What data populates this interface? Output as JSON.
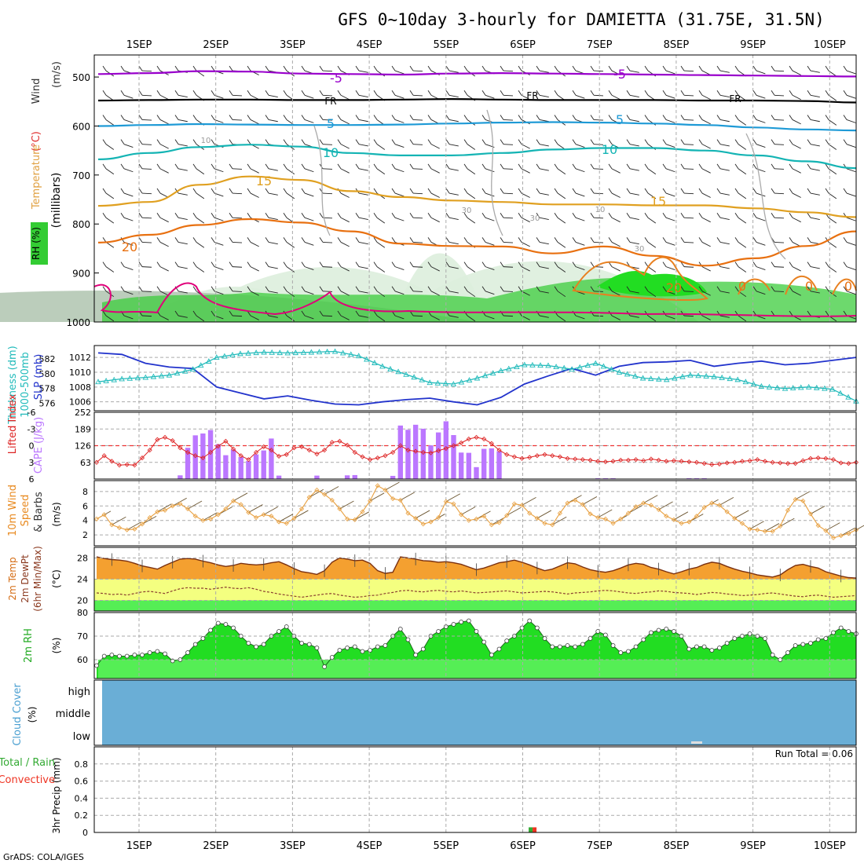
{
  "title": "GFS 0~10day 3-hourly for DAMIETTA (31.75E, 31.5N)",
  "footer": "GrADS: COLA/IGES",
  "dates": [
    "1SEP",
    "2SEP",
    "3SEP",
    "4SEP",
    "5SEP",
    "6SEP",
    "7SEP",
    "8SEP",
    "9SEP",
    "10SEP"
  ],
  "colors": {
    "purple": "#9900cc",
    "black": "#000000",
    "sky": "#1e9ad6",
    "teal": "#14b4b4",
    "gold": "#e0a020",
    "orange": "#e87010",
    "magenta": "#e0007a",
    "rh_light": "#ddeedd",
    "rh_mid": "#b4c8b4",
    "rh_green": "#3ccc3c",
    "slp": "#2233cc",
    "thick": "#22bbbb",
    "li": "#dd2222",
    "cape": "#bb77ff",
    "wind": "#e8a040",
    "temp_fill": "#f4a030",
    "dew_band": "#f4ff80",
    "rh2m": "#22dd22",
    "cloud": "#6aaed6"
  },
  "chart_data": [
    {
      "type": "area",
      "panel": "upper-air",
      "ylabel_lines": [
        {
          "text": "Wind",
          "unit": "(m/s)"
        },
        {
          "text": "Temperature",
          "unit": "(°C)"
        },
        {
          "text": "RH (%)"
        }
      ],
      "ylabel_levels": "(millibars)",
      "yticks": [
        500,
        600,
        700,
        800,
        900,
        1000
      ],
      "ylim": [
        455,
        1000
      ],
      "contour_labels": [
        "-5",
        "-5",
        "FR",
        "FR",
        "FR",
        "5",
        "5",
        "10",
        "10",
        "15",
        "15",
        "20",
        "20",
        "0",
        "0",
        "0",
        "10",
        "10",
        "30",
        "30",
        "30"
      ],
      "isotherms": [
        {
          "name": "-5",
          "color": "purple",
          "p": [
            494,
            492,
            488,
            489,
            493,
            494,
            495,
            493,
            492,
            493,
            494,
            495,
            496,
            497,
            498,
            499
          ]
        },
        {
          "name": "FR",
          "color": "black",
          "p": [
            548,
            547,
            546,
            546,
            547,
            547,
            546,
            545,
            546,
            547,
            547,
            547,
            548,
            548,
            549,
            552
          ]
        },
        {
          "name": "5",
          "color": "sky",
          "p": [
            600,
            598,
            596,
            597,
            598,
            598,
            597,
            595,
            593,
            592,
            593,
            595,
            598,
            603,
            607,
            609
          ]
        },
        {
          "name": "10",
          "color": "teal",
          "p": [
            668,
            655,
            643,
            638,
            642,
            655,
            660,
            660,
            655,
            648,
            645,
            645,
            650,
            660,
            672,
            686
          ]
        },
        {
          "name": "15",
          "color": "gold",
          "p": [
            763,
            755,
            720,
            703,
            710,
            733,
            745,
            752,
            755,
            760,
            760,
            762,
            762,
            768,
            776,
            786
          ]
        },
        {
          "name": "20",
          "color": "orange",
          "p": [
            838,
            822,
            802,
            790,
            797,
            815,
            840,
            845,
            846,
            860,
            846,
            865,
            885,
            870,
            845,
            815
          ]
        }
      ]
    },
    {
      "type": "line",
      "panel": "slp-thickness",
      "ylabel": "SLP (mb)",
      "ylabel2": [
        "1000-500mb",
        "Thickness (dm)"
      ],
      "yticks_right": [
        1006,
        1008,
        1010,
        1012
      ],
      "yticks_left": [
        576,
        578,
        580,
        582
      ],
      "series": [
        {
          "name": "SLP (mb)",
          "values": [
            1012.6,
            1012.4,
            1011.2,
            1010.7,
            1010.5,
            1008.0,
            1007.2,
            1006.4,
            1006.8,
            1006.2,
            1005.7,
            1005.6,
            1006.0,
            1006.3,
            1006.5,
            1006.0,
            1005.6,
            1006.6,
            1008.4,
            1009.5,
            1010.5,
            1009.6,
            1010.8,
            1011.3,
            1011.4,
            1011.6,
            1010.8,
            1011.2,
            1011.5,
            1011.0,
            1011.2,
            1011.6,
            1012.0
          ]
        },
        {
          "name": "1000-500mb Thickness (dm)",
          "values": [
            578.9,
            579.3,
            579.5,
            579.8,
            580.6,
            582.2,
            582.7,
            582.9,
            582.8,
            582.9,
            583.0,
            582.4,
            581.0,
            579.9,
            578.8,
            578.6,
            579.4,
            580.4,
            581.2,
            581.1,
            580.6,
            581.4,
            580.2,
            579.4,
            579.2,
            579.8,
            579.6,
            579.2,
            578.3,
            578.0,
            578.2,
            577.9,
            576.3
          ]
        }
      ]
    },
    {
      "type": "bar",
      "panel": "cape-li",
      "ylabel": "CAPE (J/kg)",
      "ylabel2": "Lifted Index",
      "yticks_cape": [
        63,
        126,
        189,
        252
      ],
      "yticks_li": [
        -6,
        -3,
        0,
        3,
        6
      ],
      "cape_values": [
        0,
        0,
        0,
        0,
        0,
        0,
        0,
        0,
        0,
        0,
        0,
        14,
        118,
        165,
        172,
        185,
        132,
        90,
        111,
        83,
        68,
        93,
        108,
        153,
        13,
        0,
        0,
        0,
        0,
        13,
        0,
        0,
        0,
        14,
        15,
        0,
        0,
        0,
        0,
        12,
        202,
        186,
        205,
        190,
        127,
        176,
        218,
        166,
        100,
        99,
        45,
        114,
        116,
        105,
        0,
        0,
        0,
        0,
        0,
        0,
        0,
        0,
        0,
        0,
        0,
        0,
        3,
        3,
        3,
        0,
        0,
        0,
        0,
        0,
        0,
        0,
        0,
        0,
        3,
        3,
        3,
        0,
        0,
        0,
        0,
        0,
        0,
        0,
        0,
        0,
        0,
        0,
        0,
        0,
        0,
        0,
        0,
        0,
        0,
        0,
        0
      ],
      "li_values": [
        3.0,
        1.8,
        2.8,
        3.5,
        3.4,
        3.5,
        2.2,
        0.8,
        -1.1,
        -1.5,
        -0.9,
        0.4,
        1.2,
        1.8,
        2.2,
        1.2,
        0.1,
        -0.8,
        0.6,
        1.8,
        2.5,
        1.2,
        0.2,
        0.8,
        1.9,
        1.6,
        0.4,
        0.2,
        0.8,
        1.5,
        0.8,
        -0.6,
        -0.8,
        -0.1,
        1.2,
        2.0,
        2.5,
        2.2,
        1.8,
        1.2,
        0.0,
        0.8,
        1.0,
        1.2,
        1.3,
        0.9,
        0.5,
        0.0,
        -0.5,
        -1.2,
        -1.5,
        -1.2,
        -0.4,
        0.8,
        1.6,
        2.0,
        2.3,
        2.1,
        1.8,
        1.6,
        1.8,
        2.0,
        2.3,
        2.4,
        2.5,
        2.6,
        2.8,
        2.9,
        2.8,
        2.6,
        2.6,
        2.5,
        2.7,
        2.4,
        2.6,
        2.8,
        2.7,
        2.8,
        2.9,
        3.0,
        3.2,
        3.4,
        3.3,
        3.1,
        3.0,
        2.8,
        2.7,
        2.5,
        2.8,
        3.0,
        3.1,
        3.2,
        3.2,
        2.7,
        2.3,
        2.2,
        2.3,
        2.5,
        3.1,
        3.2,
        3.0
      ]
    },
    {
      "type": "line",
      "panel": "10m-wind",
      "ylabel": [
        "10m Wind",
        "Speed",
        "& Barbs"
      ],
      "unit": "(m/s)",
      "yticks": [
        2,
        4,
        6,
        8
      ],
      "ylim": [
        0.5,
        9.5
      ],
      "series": [
        {
          "name": "10m Wind Speed",
          "values": [
            4.2,
            4.8,
            3.4,
            3.0,
            2.7,
            2.8,
            3.5,
            4.4,
            5.2,
            5.4,
            6.0,
            6.3,
            5.6,
            4.6,
            4.0,
            4.2,
            4.8,
            5.6,
            6.7,
            6.2,
            5.1,
            4.4,
            4.8,
            4.6,
            3.8,
            3.6,
            4.3,
            5.6,
            7.2,
            8.2,
            7.6,
            6.8,
            5.6,
            4.2,
            4.1,
            5.2,
            6.7,
            8.8,
            8.2,
            7.0,
            6.8,
            5.0,
            4.3,
            3.5,
            3.8,
            4.4,
            6.6,
            6.3,
            4.8,
            4.0,
            4.2,
            4.6,
            3.4,
            3.7,
            4.7,
            6.3,
            6.1,
            5.0,
            4.3,
            3.6,
            3.4,
            5.0,
            6.4,
            6.8,
            6.2,
            4.9,
            4.4,
            4.2,
            3.6,
            4.2,
            5.0,
            5.9,
            6.4,
            6.1,
            5.5,
            4.6,
            4.1,
            3.6,
            3.8,
            4.6,
            5.8,
            6.4,
            6.1,
            5.2,
            4.3,
            3.6,
            2.8,
            2.7,
            2.5,
            2.5,
            3.2,
            5.4,
            6.9,
            6.7,
            4.9,
            3.3,
            2.6,
            1.6,
            1.9,
            2.2,
            2.7
          ]
        }
      ]
    },
    {
      "type": "area",
      "panel": "2m-temp",
      "ylabel": [
        "2m Temp",
        "2m DewPt",
        "(6hr Min/Max)"
      ],
      "unit": "(°C)",
      "yticks": [
        20,
        24,
        28
      ],
      "ylim": [
        18,
        30
      ],
      "series": [
        {
          "name": "2m Temp",
          "values": [
            28.2,
            27.9,
            27.7,
            27.6,
            27.4,
            27.0,
            26.5,
            26.2,
            25.9,
            26.6,
            27.2,
            27.8,
            27.9,
            27.8,
            27.4,
            27.1,
            26.7,
            26.4,
            26.6,
            27.0,
            26.8,
            26.7,
            26.8,
            27.1,
            27.3,
            26.7,
            26.0,
            25.4,
            25.2,
            24.9,
            25.6,
            27.2,
            28.0,
            27.8,
            27.5,
            27.6,
            27.0,
            25.6,
            25.1,
            25.3,
            28.2,
            28.0,
            27.8,
            27.5,
            27.4,
            27.2,
            27.3,
            27.1,
            26.8,
            26.3,
            25.8,
            26.1,
            26.6,
            27.1,
            27.3,
            27.6,
            27.2,
            26.7,
            26.1,
            25.6,
            25.9,
            26.5,
            27.1,
            26.9,
            26.3,
            25.8,
            25.5,
            25.3,
            25.6,
            26.1,
            26.7,
            27.0,
            26.8,
            26.2,
            25.9,
            25.4,
            25.0,
            25.4,
            25.9,
            26.2,
            26.8,
            27.2,
            27.0,
            26.4,
            25.9,
            25.5,
            25.2,
            24.8,
            24.6,
            24.4,
            24.8,
            25.8,
            26.6,
            26.8,
            26.4,
            26.1,
            25.4,
            25.0,
            24.6,
            24.3,
            24.2
          ]
        },
        {
          "name": "2m DewPt",
          "values": [
            21.4,
            21.3,
            21.1,
            21.2,
            21.0,
            21.3,
            21.6,
            21.7,
            21.5,
            21.3,
            21.8,
            22.2,
            22.4,
            22.3,
            22.3,
            22.1,
            22.3,
            22.5,
            22.3,
            22.2,
            22.4,
            22.1,
            21.7,
            21.5,
            21.2,
            21.0,
            20.8,
            20.6,
            20.8,
            21.0,
            21.2,
            21.3,
            21.0,
            20.8,
            20.6,
            20.7,
            20.9,
            21.0,
            21.3,
            21.5,
            21.8,
            21.9,
            21.7,
            21.6,
            21.8,
            21.9,
            21.7,
            21.6,
            21.8,
            21.6,
            21.4,
            21.5,
            21.6,
            21.7,
            21.8,
            21.6,
            21.4,
            21.5,
            21.6,
            21.7,
            21.6,
            21.4,
            21.2,
            21.4,
            21.5,
            21.6,
            21.8,
            21.9,
            21.8,
            21.6,
            21.4,
            21.3,
            21.5,
            21.6,
            21.8,
            21.7,
            21.5,
            21.4,
            21.3,
            21.1,
            21.3,
            21.5,
            21.4,
            21.2,
            21.1,
            20.9,
            21.0,
            21.1,
            21.3,
            21.4,
            21.2,
            21.0,
            20.8,
            20.7,
            20.9,
            21.0,
            20.8,
            20.6,
            20.7,
            20.8,
            20.9
          ]
        }
      ]
    },
    {
      "type": "area",
      "panel": "2m-rh",
      "ylabel": "2m RH",
      "unit": "(%)",
      "yticks": [
        60,
        70,
        80
      ],
      "ylim": [
        52,
        80
      ],
      "series": [
        {
          "name": "2m RH",
          "values": [
            57.5,
            61.5,
            62.0,
            61.5,
            61.5,
            62.0,
            62.0,
            63.0,
            63.5,
            62.5,
            59.5,
            60.0,
            63.0,
            66.5,
            69.0,
            72.5,
            75.5,
            75.0,
            73.5,
            70.0,
            67.0,
            65.5,
            66.5,
            70.0,
            72.0,
            74.0,
            70.0,
            67.0,
            66.5,
            65.0,
            57.0,
            61.0,
            64.0,
            65.0,
            65.5,
            63.5,
            64.0,
            65.5,
            66.0,
            70.0,
            73.0,
            68.5,
            62.0,
            64.5,
            70.0,
            72.0,
            74.0,
            75.0,
            76.0,
            76.5,
            72.0,
            67.5,
            62.0,
            64.5,
            68.0,
            70.0,
            73.5,
            76.5,
            73.5,
            69.0,
            65.5,
            65.5,
            66.0,
            65.5,
            66.5,
            69.0,
            72.0,
            70.5,
            66.0,
            63.0,
            63.5,
            65.5,
            68.5,
            71.5,
            72.5,
            73.0,
            72.0,
            70.0,
            64.5,
            65.5,
            65.5,
            64.0,
            65.0,
            67.0,
            69.0,
            70.0,
            71.0,
            70.0,
            69.0,
            62.0,
            60.0,
            63.0,
            66.0,
            66.5,
            67.0,
            68.5,
            69.0,
            71.5,
            73.5,
            72.0,
            71.0
          ]
        }
      ]
    },
    {
      "type": "heatmap",
      "panel": "cloud-cover",
      "ylabel": "Cloud Cover",
      "unit": "(%)",
      "levels": [
        "high",
        "middle",
        "low"
      ]
    },
    {
      "type": "bar",
      "panel": "precip",
      "ylabel": "3hr Precip (mm)",
      "ylabel2": [
        "Total / Rain",
        "Convective"
      ],
      "yticks": [
        "0",
        "0.2",
        "0.4",
        "0.6",
        "0.8"
      ],
      "ylim": [
        0,
        1.0
      ],
      "annotation": "Run Total = 0.06",
      "values": [
        {
          "x_index": 57.4,
          "total": 0.06,
          "convective": 0.06
        }
      ]
    }
  ]
}
